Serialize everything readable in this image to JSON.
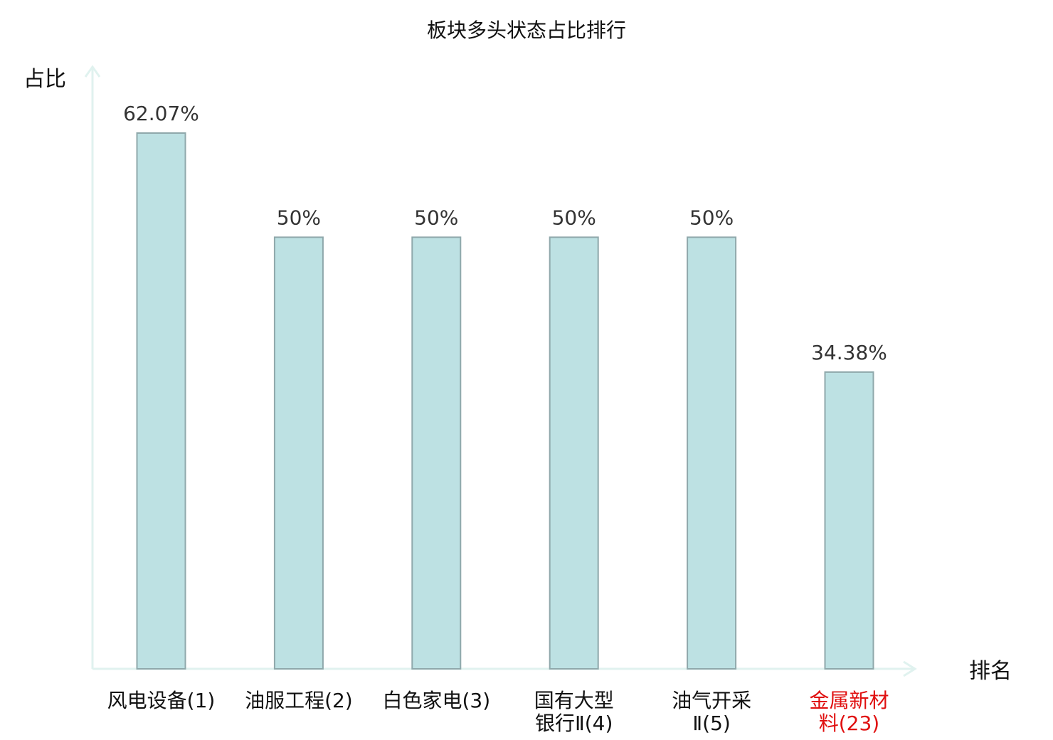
{
  "chart_data": {
    "type": "bar",
    "title": "板块多头状态占比排行",
    "ylabel": "占比",
    "xlabel": "排名",
    "ylim": [
      0,
      70
    ],
    "grid": false,
    "categories": [
      {
        "lines": [
          "风电设备(1)"
        ],
        "highlight": false
      },
      {
        "lines": [
          "油服工程(2)"
        ],
        "highlight": false
      },
      {
        "lines": [
          "白色家电(3)"
        ],
        "highlight": false
      },
      {
        "lines": [
          "国有大型",
          "银行Ⅱ(4)"
        ],
        "highlight": false
      },
      {
        "lines": [
          "油气开采",
          "Ⅱ(5)"
        ],
        "highlight": false
      },
      {
        "lines": [
          "金属新材",
          "料(23)"
        ],
        "highlight": true
      }
    ],
    "values": [
      62.07,
      50,
      50,
      50,
      50,
      34.38
    ],
    "value_labels": [
      "62.07%",
      "50%",
      "50%",
      "50%",
      "50%",
      "34.38%"
    ]
  },
  "colors": {
    "bar_fill": "#bde1e3",
    "bar_stroke": "#8fa8ab",
    "axis": "#e0f2ef",
    "text": "#111111",
    "value_text": "#333333",
    "highlight_text": "#e01010"
  }
}
